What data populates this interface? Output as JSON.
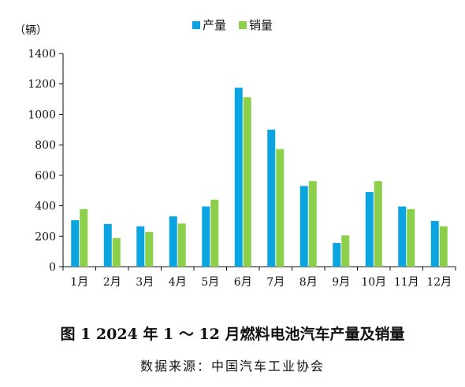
{
  "chart_data": {
    "type": "bar",
    "ylabel": "（辆）",
    "ylim": [
      0,
      1400
    ],
    "yticks": [
      0,
      200,
      400,
      600,
      800,
      1000,
      1200,
      1400
    ],
    "categories": [
      "1月",
      "2月",
      "3月",
      "4月",
      "5月",
      "6月",
      "7月",
      "8月",
      "9月",
      "10月",
      "11月",
      "12月"
    ],
    "series": [
      {
        "name": "产量",
        "color": "#0aa4e0",
        "values": [
          305,
          280,
          265,
          330,
          395,
          1175,
          900,
          530,
          155,
          490,
          395,
          300
        ]
      },
      {
        "name": "销量",
        "color": "#8ccf4a",
        "values": [
          378,
          188,
          228,
          283,
          440,
          1113,
          772,
          562,
          205,
          562,
          378,
          265
        ]
      }
    ],
    "legend": "top-center",
    "grid": false
  },
  "figure": {
    "title": "图 1   2024 年 1 ～ 12 月燃料电池汽车产量及销量",
    "source": "数据来源：中国汽车工业协会"
  }
}
